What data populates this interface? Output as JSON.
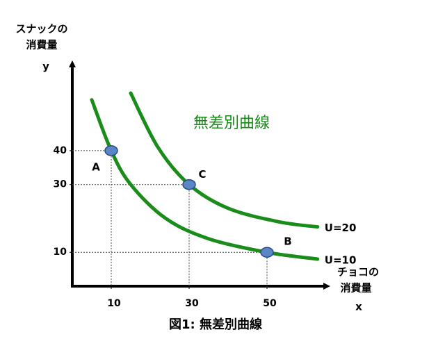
{
  "chart_data": {
    "type": "line",
    "title": "図1: 無差別曲線",
    "annotation": "無差別曲線",
    "y_label": [
      "スナックの",
      "消費量"
    ],
    "y_name": "y",
    "x_label": [
      "チョコの",
      "消費量"
    ],
    "x_name": "x",
    "xlim": [
      0,
      65
    ],
    "ylim": [
      0,
      65
    ],
    "xticks": [
      10,
      30,
      50
    ],
    "yticks": [
      10,
      30,
      40
    ],
    "series": [
      {
        "name": "U=10",
        "color": "#1a8c1a",
        "x": [
          5,
          10,
          15,
          24,
          35,
          50,
          63
        ],
        "values": [
          55,
          40,
          30,
          20,
          14,
          10,
          8
        ]
      },
      {
        "name": "U=20",
        "color": "#1a8c1a",
        "x": [
          15,
          22,
          30,
          40,
          53,
          63
        ],
        "values": [
          57,
          41,
          30,
          23,
          19,
          17.5
        ]
      }
    ],
    "points": {
      "labels": [
        "A",
        "C",
        "B"
      ],
      "x": [
        10,
        30,
        50
      ],
      "values": [
        40,
        30,
        10
      ],
      "color": "#5b86c5"
    }
  }
}
